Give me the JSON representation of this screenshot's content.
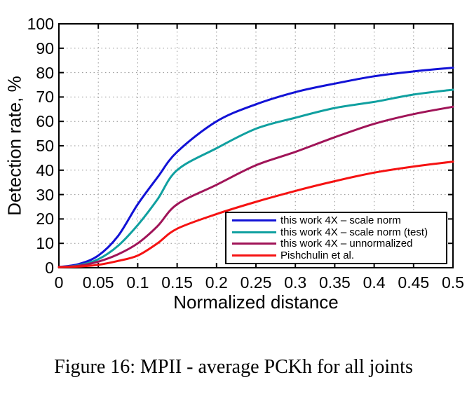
{
  "caption": "Figure 16: MPII - average PCKh for all joints",
  "legend_title": "",
  "chart_data": {
    "type": "line",
    "title": "",
    "xlabel": "Normalized distance",
    "ylabel": "Detection rate, %",
    "xlim": [
      0,
      0.5
    ],
    "ylim": [
      0,
      100
    ],
    "grid": "dotted",
    "legend_position": "lower right",
    "xticks": [
      0,
      0.05,
      0.1,
      0.15,
      0.2,
      0.25,
      0.3,
      0.35,
      0.4,
      0.45,
      0.5
    ],
    "xtick_labels": [
      "0",
      "0.05",
      "0.1",
      "0.15",
      "0.2",
      "0.25",
      "0.3",
      "0.35",
      "0.4",
      "0.45",
      "0.5"
    ],
    "yticks": [
      0,
      10,
      20,
      30,
      40,
      50,
      60,
      70,
      80,
      90,
      100
    ],
    "ytick_labels": [
      "0",
      "10",
      "20",
      "30",
      "40",
      "50",
      "60",
      "70",
      "80",
      "90",
      "100"
    ],
    "x": [
      0,
      0.025,
      0.05,
      0.075,
      0.1,
      0.125,
      0.15,
      0.2,
      0.25,
      0.3,
      0.35,
      0.4,
      0.45,
      0.5
    ],
    "series": [
      {
        "name": "this work 4X – scale norm",
        "color": "#1212d6",
        "values": [
          0.3,
          1.5,
          5,
          13,
          26,
          37,
          47.5,
          60,
          67,
          72,
          75.5,
          78.5,
          80.5,
          82
        ]
      },
      {
        "name": "this work 4X – scale norm (test)",
        "color": "#10a0a0",
        "values": [
          0.3,
          1,
          3.5,
          9,
          17.5,
          28,
          40,
          49,
          57,
          61.5,
          65.5,
          68,
          71,
          73
        ]
      },
      {
        "name": "this work 4X – unnormalized",
        "color": "#a01458",
        "values": [
          0.3,
          0.8,
          2.5,
          5.5,
          10,
          17,
          26,
          34,
          42,
          47.5,
          53.5,
          59,
          63,
          66
        ]
      },
      {
        "name": "Pishchulin et al.",
        "color": "#f51212",
        "values": [
          0.2,
          0.5,
          1.2,
          2.8,
          5,
          10,
          16,
          22,
          27,
          31.5,
          35.5,
          39,
          41.5,
          43.5
        ]
      }
    ],
    "axis_color": "#000000",
    "grid_color": "#909090"
  }
}
